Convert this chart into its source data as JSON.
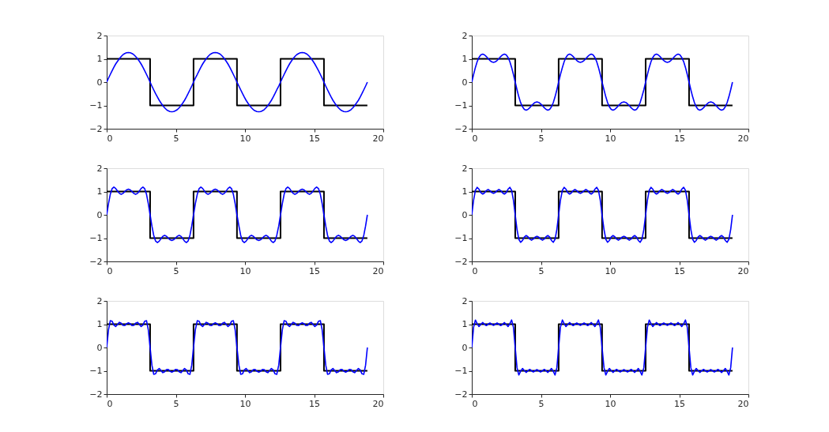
{
  "chart_data": [
    {
      "type": "line",
      "xlim": [
        0,
        20
      ],
      "xticks": [
        0,
        5,
        10,
        15,
        20
      ],
      "ylim": [
        -2,
        2
      ],
      "yticks": [
        -2,
        -1,
        0,
        1,
        2
      ],
      "x": [
        0,
        0.13,
        0.26,
        0.39,
        0.52,
        0.65,
        0.79,
        0.92,
        1.05,
        1.18,
        1.31,
        1.44,
        1.57,
        1.7,
        1.83,
        1.96,
        2.09,
        2.23,
        2.36,
        2.49,
        2.62,
        2.75,
        2.88,
        3.01,
        3.14,
        3.27,
        3.4,
        3.53,
        3.67,
        3.8,
        3.93,
        4.06,
        4.19,
        4.32,
        4.45,
        4.58,
        4.71,
        4.84,
        4.97,
        5.11,
        5.24,
        5.37,
        5.5,
        5.63,
        5.76,
        5.89,
        6.02,
        6.15,
        6.28,
        6.41,
        6.55,
        6.68,
        6.81,
        6.94,
        7.07,
        7.2,
        7.33,
        7.46,
        7.59,
        7.72,
        7.85,
        7.98,
        8.12,
        8.25,
        8.38,
        8.51,
        8.64,
        8.77,
        8.9,
        9.03,
        9.16,
        9.29,
        9.42,
        9.56,
        9.69,
        9.82,
        9.95,
        10.08,
        10.21,
        10.34,
        10.47,
        10.6,
        10.73,
        10.86,
        11.0,
        11.13,
        11.26,
        11.39,
        11.52,
        11.65,
        11.78,
        11.91,
        12.04,
        12.17,
        12.3,
        12.44,
        12.57,
        12.7,
        12.83,
        12.96,
        13.09,
        13.22,
        13.35,
        13.48,
        13.61,
        13.74,
        13.88,
        14.01,
        14.14,
        14.27,
        14.4,
        14.53,
        14.66,
        14.79,
        14.92,
        15.05,
        15.18,
        15.32,
        15.45,
        15.58,
        15.71,
        15.84,
        15.97,
        16.1,
        16.23,
        16.36,
        16.49,
        16.62,
        16.76,
        16.89,
        17.02,
        17.15,
        17.28,
        17.41,
        17.54,
        17.67,
        17.8,
        17.93,
        18.06,
        18.2,
        18.33,
        18.46,
        18.59,
        18.72,
        18.85
      ],
      "series": [
        {
          "type": "step",
          "color": "#000000",
          "x": [
            0,
            3.14,
            6.28,
            9.42,
            12.57,
            15.71,
            18.85
          ],
          "values": [
            1,
            -1,
            1,
            -1,
            1,
            -1,
            -1
          ]
        },
        {
          "color": "#0000ff",
          "values": [
            0,
            0.17,
            0.33,
            0.49,
            0.64,
            0.78,
            0.9,
            1.01,
            1.1,
            1.18,
            1.23,
            1.26,
            1.27,
            1.26,
            1.23,
            1.18,
            1.1,
            1.01,
            0.9,
            0.78,
            0.64,
            0.49,
            0.33,
            0.17,
            0,
            -0.17,
            -0.33,
            -0.49,
            -0.64,
            -0.78,
            -0.9,
            -1.01,
            -1.1,
            -1.18,
            -1.23,
            -1.26,
            -1.27,
            -1.26,
            -1.23,
            -1.18,
            -1.1,
            -1.01,
            -0.9,
            -0.78,
            -0.64,
            -0.49,
            -0.33,
            -0.17,
            0,
            0.17,
            0.33,
            0.49,
            0.64,
            0.78,
            0.9,
            1.01,
            1.1,
            1.18,
            1.23,
            1.26,
            1.27,
            1.26,
            1.23,
            1.18,
            1.1,
            1.01,
            0.9,
            0.78,
            0.64,
            0.49,
            0.33,
            0.17,
            0,
            -0.17,
            -0.33,
            -0.49,
            -0.64,
            -0.78,
            -0.9,
            -1.01,
            -1.1,
            -1.18,
            -1.23,
            -1.26,
            -1.27,
            -1.26,
            -1.23,
            -1.18,
            -1.1,
            -1.01,
            -0.9,
            -0.78,
            -0.64,
            -0.49,
            -0.33,
            -0.17,
            0,
            0.17,
            0.33,
            0.49,
            0.64,
            0.78,
            0.9,
            1.01,
            1.1,
            1.18,
            1.23,
            1.26,
            1.27,
            1.26,
            1.23,
            1.18,
            1.1,
            1.01,
            0.9,
            0.78,
            0.64,
            0.49,
            0.33,
            0.17,
            0,
            -0.17,
            -0.33,
            -0.49,
            -0.64,
            -0.78,
            -0.9,
            -1.01,
            -1.1,
            -1.18,
            -1.23,
            -1.26,
            -1.27,
            -1.26,
            -1.23,
            -1.18,
            -1.1,
            -1.01,
            -0.9,
            -0.78,
            -0.64,
            -0.49,
            -0.33,
            -0.17,
            0
          ]
        }
      ]
    },
    {
      "type": "line",
      "xlim": [
        0,
        20
      ],
      "xticks": [
        0,
        5,
        10,
        15,
        20
      ],
      "ylim": [
        -2,
        2
      ],
      "yticks": [
        -2,
        -1,
        0,
        1,
        2
      ],
      "x": [
        0,
        0.13,
        0.26,
        0.39,
        0.52,
        0.65,
        0.79,
        0.92,
        1.05,
        1.18,
        1.31,
        1.44,
        1.57,
        1.7,
        1.83,
        1.96,
        2.09,
        2.23,
        2.36,
        2.49,
        2.62,
        2.75,
        2.88,
        3.01,
        3.14,
        3.27,
        3.4,
        3.53,
        3.67,
        3.8,
        3.93,
        4.06,
        4.19,
        4.32,
        4.45,
        4.58,
        4.71,
        4.84,
        4.97,
        5.11,
        5.24,
        5.37,
        5.5,
        5.63,
        5.76,
        5.89,
        6.02,
        6.15,
        6.28,
        6.41,
        6.55,
        6.68,
        6.81,
        6.94,
        7.07,
        7.2,
        7.33,
        7.46,
        7.59,
        7.72,
        7.85,
        7.98,
        8.12,
        8.25,
        8.38,
        8.51,
        8.64,
        8.77,
        8.9,
        9.03,
        9.16,
        9.29,
        9.42,
        9.56,
        9.69,
        9.82,
        9.95,
        10.08,
        10.21,
        10.34,
        10.47,
        10.6,
        10.73,
        10.86,
        11.0,
        11.13,
        11.26,
        11.39,
        11.52,
        11.65,
        11.78,
        11.91,
        12.04,
        12.17,
        12.3,
        12.44,
        12.57,
        12.7,
        12.83,
        12.96,
        13.09,
        13.22,
        13.35,
        13.48,
        13.61,
        13.74,
        13.88,
        14.01,
        14.14,
        14.27,
        14.4,
        14.53,
        14.66,
        14.79,
        14.92,
        15.05,
        15.18,
        15.32,
        15.45,
        15.58,
        15.71,
        15.84,
        15.97,
        16.1,
        16.23,
        16.36,
        16.49,
        16.62,
        16.76,
        16.89,
        17.02,
        17.15,
        17.28,
        17.41,
        17.54,
        17.67,
        17.8,
        17.93,
        18.06,
        18.2,
        18.33,
        18.46,
        18.59,
        18.72,
        18.85
      ],
      "series": [
        {
          "type": "step",
          "color": "#000000",
          "x": [
            0,
            3.14,
            6.28,
            9.42,
            12.57,
            15.71,
            18.85
          ],
          "values": [
            1,
            -1,
            1,
            -1,
            1,
            -1,
            -1
          ]
        },
        {
          "color": "#0000ff",
          "values": [
            0,
            0.33,
            0.63,
            0.88,
            1.06,
            1.17,
            1.2,
            1.17,
            1.1,
            1.01,
            0.93,
            0.87,
            0.85,
            0.87,
            0.93,
            1.01,
            1.1,
            1.17,
            1.2,
            1.17,
            1.06,
            0.88,
            0.63,
            0.33,
            0,
            -0.33,
            -0.63,
            -0.88,
            -1.06,
            -1.17,
            -1.2,
            -1.17,
            -1.1,
            -1.01,
            -0.93,
            -0.87,
            -0.85,
            -0.87,
            -0.93,
            -1.01,
            -1.1,
            -1.17,
            -1.2,
            -1.17,
            -1.06,
            -0.88,
            -0.63,
            -0.33,
            0,
            0.33,
            0.63,
            0.88,
            1.06,
            1.17,
            1.2,
            1.17,
            1.1,
            1.01,
            0.93,
            0.87,
            0.85,
            0.87,
            0.93,
            1.01,
            1.1,
            1.17,
            1.2,
            1.17,
            1.06,
            0.88,
            0.63,
            0.33,
            0,
            -0.33,
            -0.63,
            -0.88,
            -1.06,
            -1.17,
            -1.2,
            -1.17,
            -1.1,
            -1.01,
            -0.93,
            -0.87,
            -0.85,
            -0.87,
            -0.93,
            -1.01,
            -1.1,
            -1.17,
            -1.2,
            -1.17,
            -1.06,
            -0.88,
            -0.63,
            -0.33,
            0,
            0.33,
            0.63,
            0.88,
            1.06,
            1.17,
            1.2,
            1.17,
            1.1,
            1.01,
            0.93,
            0.87,
            0.85,
            0.87,
            0.93,
            1.01,
            1.1,
            1.17,
            1.2,
            1.17,
            1.06,
            0.88,
            0.63,
            0.33,
            0,
            -0.33,
            -0.63,
            -0.88,
            -1.06,
            -1.17,
            -1.2,
            -1.17,
            -1.1,
            -1.01,
            -0.93,
            -0.87,
            -0.85,
            -0.87,
            -0.93,
            -1.01,
            -1.1,
            -1.17,
            -1.2,
            -1.17,
            -1.06,
            -0.88,
            -0.63,
            -0.33,
            0
          ]
        }
      ]
    },
    {
      "type": "line",
      "xlim": [
        0,
        20
      ],
      "xticks": [
        0,
        5,
        10,
        15,
        20
      ],
      "ylim": [
        -2,
        2
      ],
      "yticks": [
        -2,
        -1,
        0,
        1,
        2
      ],
      "x": [
        0,
        0.13,
        0.26,
        0.39,
        0.52,
        0.65,
        0.79,
        0.92,
        1.05,
        1.18,
        1.31,
        1.44,
        1.57,
        1.7,
        1.83,
        1.96,
        2.09,
        2.23,
        2.36,
        2.49,
        2.62,
        2.75,
        2.88,
        3.01,
        3.14,
        3.27,
        3.4,
        3.53,
        3.67,
        3.8,
        3.93,
        4.06,
        4.19,
        4.32,
        4.45,
        4.58,
        4.71,
        4.84,
        4.97,
        5.11,
        5.24,
        5.37,
        5.5,
        5.63,
        5.76,
        5.89,
        6.02,
        6.15,
        6.28,
        6.41,
        6.55,
        6.68,
        6.81,
        6.94,
        7.07,
        7.2,
        7.33,
        7.46,
        7.59,
        7.72,
        7.85,
        7.98,
        8.12,
        8.25,
        8.38,
        8.51,
        8.64,
        8.77,
        8.9,
        9.03,
        9.16,
        9.29,
        9.42,
        9.56,
        9.69,
        9.82,
        9.95,
        10.08,
        10.21,
        10.34,
        10.47,
        10.6,
        10.73,
        10.86,
        11.0,
        11.13,
        11.26,
        11.39,
        11.52,
        11.65,
        11.78,
        11.91,
        12.04,
        12.17,
        12.3,
        12.44,
        12.57,
        12.7,
        12.83,
        12.96,
        13.09,
        13.22,
        13.35,
        13.48,
        13.61,
        13.74,
        13.88,
        14.01,
        14.14,
        14.27,
        14.4,
        14.53,
        14.66,
        14.79,
        14.92,
        15.05,
        15.18,
        15.32,
        15.45,
        15.58,
        15.71,
        15.84,
        15.97,
        16.1,
        16.23,
        16.36,
        16.49,
        16.62,
        16.76,
        16.89,
        17.02,
        17.15,
        17.28,
        17.41,
        17.54,
        17.67,
        17.8,
        17.93,
        18.06,
        18.2,
        18.33,
        18.46,
        18.59,
        18.72,
        18.85
      ],
      "series": [
        {
          "type": "step",
          "color": "#000000",
          "x": [
            0,
            3.14,
            6.28,
            9.42,
            12.57,
            15.71,
            18.85
          ],
          "values": [
            1,
            -1,
            1,
            -1,
            1,
            -1,
            -1
          ]
        },
        {
          "color": "#0000ff",
          "values": [
            0,
            0.48,
            0.88,
            1.12,
            1.19,
            1.13,
            1.02,
            0.92,
            0.88,
            0.92,
            1,
            1.07,
            1.1,
            1.07,
            1,
            0.92,
            0.88,
            0.92,
            1.02,
            1.13,
            1.19,
            1.12,
            0.88,
            0.48,
            0,
            -0.48,
            -0.88,
            -1.12,
            -1.19,
            -1.13,
            -1.02,
            -0.92,
            -0.88,
            -0.92,
            -1,
            -1.07,
            -1.1,
            -1.07,
            -1,
            -0.92,
            -0.88,
            -0.92,
            -1.02,
            -1.13,
            -1.19,
            -1.12,
            -0.88,
            -0.48,
            0,
            0.48,
            0.88,
            1.12,
            1.19,
            1.13,
            1.02,
            0.92,
            0.88,
            0.92,
            1,
            1.07,
            1.1,
            1.07,
            1,
            0.92,
            0.88,
            0.92,
            1.02,
            1.13,
            1.19,
            1.12,
            0.88,
            0.48,
            0,
            -0.48,
            -0.88,
            -1.12,
            -1.19,
            -1.13,
            -1.02,
            -0.92,
            -0.88,
            -0.92,
            -1,
            -1.07,
            -1.1,
            -1.07,
            -1,
            -0.92,
            -0.88,
            -0.92,
            -1.02,
            -1.13,
            -1.19,
            -1.12,
            -0.88,
            -0.48,
            0,
            0.48,
            0.88,
            1.12,
            1.19,
            1.13,
            1.02,
            0.92,
            0.88,
            0.92,
            1,
            1.07,
            1.1,
            1.07,
            1,
            0.92,
            0.88,
            0.92,
            1.02,
            1.13,
            1.19,
            1.12,
            0.88,
            0.48,
            0,
            -0.48,
            -0.88,
            -1.12,
            -1.19,
            -1.13,
            -1.02,
            -0.92,
            -0.88,
            -0.92,
            -1,
            -1.07,
            -1.1,
            -1.07,
            -1,
            -0.92,
            -0.88,
            -0.92,
            -1.02,
            -1.13,
            -1.19,
            -1.12,
            -0.88,
            -0.48,
            0
          ]
        }
      ]
    },
    {
      "type": "line",
      "xlim": [
        0,
        20
      ],
      "xticks": [
        0,
        5,
        10,
        15,
        20
      ],
      "ylim": [
        -2,
        2
      ],
      "yticks": [
        -2,
        -1,
        0,
        1,
        2
      ],
      "x": [
        0,
        0.13,
        0.26,
        0.39,
        0.52,
        0.65,
        0.79,
        0.92,
        1.05,
        1.18,
        1.31,
        1.44,
        1.57,
        1.7,
        1.83,
        1.96,
        2.09,
        2.23,
        2.36,
        2.49,
        2.62,
        2.75,
        2.88,
        3.01,
        3.14,
        3.27,
        3.4,
        3.53,
        3.67,
        3.8,
        3.93,
        4.06,
        4.19,
        4.32,
        4.45,
        4.58,
        4.71,
        4.84,
        4.97,
        5.11,
        5.24,
        5.37,
        5.5,
        5.63,
        5.76,
        5.89,
        6.02,
        6.15,
        6.28,
        6.41,
        6.55,
        6.68,
        6.81,
        6.94,
        7.07,
        7.2,
        7.33,
        7.46,
        7.59,
        7.72,
        7.85,
        7.98,
        8.12,
        8.25,
        8.38,
        8.51,
        8.64,
        8.77,
        8.9,
        9.03,
        9.16,
        9.29,
        9.42,
        9.56,
        9.69,
        9.82,
        9.95,
        10.08,
        10.21,
        10.34,
        10.47,
        10.6,
        10.73,
        10.86,
        11.0,
        11.13,
        11.26,
        11.39,
        11.52,
        11.65,
        11.78,
        11.91,
        12.04,
        12.17,
        12.3,
        12.44,
        12.57,
        12.7,
        12.83,
        12.96,
        13.09,
        13.22,
        13.35,
        13.48,
        13.61,
        13.74,
        13.88,
        14.01,
        14.14,
        14.27,
        14.4,
        14.53,
        14.66,
        14.79,
        14.92,
        15.05,
        15.18,
        15.32,
        15.45,
        15.58,
        15.71,
        15.84,
        15.97,
        16.1,
        16.23,
        16.36,
        16.49,
        16.62,
        16.76,
        16.89,
        17.02,
        17.15,
        17.28,
        17.41,
        17.54,
        17.67,
        17.8,
        17.93,
        18.06,
        18.2,
        18.33,
        18.46,
        18.59,
        18.72,
        18.85
      ],
      "series": [
        {
          "type": "step",
          "color": "#000000",
          "x": [
            0,
            3.14,
            6.28,
            9.42,
            12.57,
            15.71,
            18.85
          ],
          "values": [
            1,
            -1,
            1,
            -1,
            1,
            -1,
            -1
          ]
        },
        {
          "color": "#0000ff",
          "values": [
            0,
            0.63,
            1.05,
            1.18,
            1.1,
            0.95,
            0.89,
            0.94,
            1.04,
            1.09,
            1.04,
            0.96,
            0.92,
            0.96,
            1.04,
            1.09,
            1.04,
            0.94,
            0.89,
            0.95,
            1.1,
            1.18,
            1.05,
            0.63,
            0,
            -0.63,
            -1.05,
            -1.18,
            -1.1,
            -0.95,
            -0.89,
            -0.94,
            -1.04,
            -1.09,
            -1.04,
            -0.96,
            -0.92,
            -0.96,
            -1.04,
            -1.09,
            -1.04,
            -0.94,
            -0.89,
            -0.95,
            -1.1,
            -1.18,
            -1.05,
            -0.63,
            0,
            0.63,
            1.05,
            1.18,
            1.1,
            0.95,
            0.89,
            0.94,
            1.04,
            1.09,
            1.04,
            0.96,
            0.92,
            0.96,
            1.04,
            1.09,
            1.04,
            0.94,
            0.89,
            0.95,
            1.1,
            1.18,
            1.05,
            0.63,
            0,
            -0.63,
            -1.05,
            -1.18,
            -1.1,
            -0.95,
            -0.89,
            -0.94,
            -1.04,
            -1.09,
            -1.04,
            -0.96,
            -0.92,
            -0.96,
            -1.04,
            -1.09,
            -1.04,
            -0.94,
            -0.89,
            -0.95,
            -1.1,
            -1.18,
            -1.05,
            -0.63,
            0,
            0.63,
            1.05,
            1.18,
            1.1,
            0.95,
            0.89,
            0.94,
            1.04,
            1.09,
            1.04,
            0.96,
            0.92,
            0.96,
            1.04,
            1.09,
            1.04,
            0.94,
            0.89,
            0.95,
            1.1,
            1.18,
            1.05,
            0.63,
            0,
            -0.63,
            -1.05,
            -1.18,
            -1.1,
            -0.95,
            -0.89,
            -0.94,
            -1.04,
            -1.09,
            -1.04,
            -0.96,
            -0.92,
            -0.96,
            -1.04,
            -1.09,
            -1.04,
            -0.94,
            -0.89,
            -0.95,
            -1.1,
            -1.18,
            -1.05,
            -0.63,
            0
          ]
        }
      ]
    },
    {
      "type": "line",
      "xlim": [
        0,
        20
      ],
      "xticks": [
        0,
        5,
        10,
        15,
        20
      ],
      "ylim": [
        -2,
        2
      ],
      "yticks": [
        -2,
        -1,
        0,
        1,
        2
      ],
      "x": [
        0,
        0.13,
        0.26,
        0.39,
        0.52,
        0.65,
        0.79,
        0.92,
        1.05,
        1.18,
        1.31,
        1.44,
        1.57,
        1.7,
        1.83,
        1.96,
        2.09,
        2.23,
        2.36,
        2.49,
        2.62,
        2.75,
        2.88,
        3.01,
        3.14,
        3.27,
        3.4,
        3.53,
        3.67,
        3.8,
        3.93,
        4.06,
        4.19,
        4.32,
        4.45,
        4.58,
        4.71,
        4.84,
        4.97,
        5.11,
        5.24,
        5.37,
        5.5,
        5.63,
        5.76,
        5.89,
        6.02,
        6.15,
        6.28,
        6.41,
        6.55,
        6.68,
        6.81,
        6.94,
        7.07,
        7.2,
        7.33,
        7.46,
        7.59,
        7.72,
        7.85,
        7.98,
        8.12,
        8.25,
        8.38,
        8.51,
        8.64,
        8.77,
        8.9,
        9.03,
        9.16,
        9.29,
        9.42,
        9.56,
        9.69,
        9.82,
        9.95,
        10.08,
        10.21,
        10.34,
        10.47,
        10.6,
        10.73,
        10.86,
        11.0,
        11.13,
        11.26,
        11.39,
        11.52,
        11.65,
        11.78,
        11.91,
        12.04,
        12.17,
        12.3,
        12.44,
        12.57,
        12.7,
        12.83,
        12.96,
        13.09,
        13.22,
        13.35,
        13.48,
        13.61,
        13.74,
        13.88,
        14.01,
        14.14,
        14.27,
        14.4,
        14.53,
        14.66,
        14.79,
        14.92,
        15.05,
        15.18,
        15.32,
        15.45,
        15.58,
        15.71,
        15.84,
        15.97,
        16.1,
        16.23,
        16.36,
        16.49,
        16.62,
        16.76,
        16.89,
        17.02,
        17.15,
        17.28,
        17.41,
        17.54,
        17.67,
        17.8,
        17.93,
        18.06,
        18.2,
        18.33,
        18.46,
        18.59,
        18.72,
        18.85
      ],
      "series": [
        {
          "type": "step",
          "color": "#000000",
          "x": [
            0,
            3.14,
            6.28,
            9.42,
            12.57,
            15.71,
            18.85
          ],
          "values": [
            1,
            -1,
            1,
            -1,
            1,
            -1,
            -1
          ]
        },
        {
          "color": "#0000ff",
          "values": [
            0,
            0.76,
            1.15,
            1.13,
            0.96,
            0.9,
            0.99,
            1.08,
            1.04,
            0.95,
            0.94,
            1.02,
            1.06,
            1.02,
            0.94,
            0.95,
            1.04,
            1.08,
            0.99,
            0.9,
            0.96,
            1.13,
            1.15,
            0.76,
            0,
            -0.76,
            -1.15,
            -1.13,
            -0.96,
            -0.9,
            -0.99,
            -1.08,
            -1.04,
            -0.95,
            -0.94,
            -1.02,
            -1.06,
            -1.02,
            -0.94,
            -0.95,
            -1.04,
            -1.08,
            -0.99,
            -0.9,
            -0.96,
            -1.13,
            -1.15,
            -0.76,
            0,
            0.76,
            1.15,
            1.13,
            0.96,
            0.9,
            0.99,
            1.08,
            1.04,
            0.95,
            0.94,
            1.02,
            1.06,
            1.02,
            0.94,
            0.95,
            1.04,
            1.08,
            0.99,
            0.9,
            0.96,
            1.13,
            1.15,
            0.76,
            0,
            -0.76,
            -1.15,
            -1.13,
            -0.96,
            -0.9,
            -0.99,
            -1.08,
            -1.04,
            -0.95,
            -0.94,
            -1.02,
            -1.06,
            -1.02,
            -0.94,
            -0.95,
            -1.04,
            -1.08,
            -0.99,
            -0.9,
            -0.96,
            -1.13,
            -1.15,
            -0.76,
            0,
            0.76,
            1.15,
            1.13,
            0.96,
            0.9,
            0.99,
            1.08,
            1.04,
            0.95,
            0.94,
            1.02,
            1.06,
            1.02,
            0.94,
            0.95,
            1.04,
            1.08,
            0.99,
            0.9,
            0.96,
            1.13,
            1.15,
            0.76,
            0,
            -0.76,
            -1.15,
            -1.13,
            -0.96,
            -0.9,
            -0.99,
            -1.08,
            -1.04,
            -0.95,
            -0.94,
            -1.02,
            -1.06,
            -1.02,
            -0.94,
            -0.95,
            -1.04,
            -1.08,
            -0.99,
            -0.9,
            -0.96,
            -1.13,
            -1.15,
            -0.76,
            0
          ]
        }
      ]
    },
    {
      "type": "line",
      "xlim": [
        0,
        20
      ],
      "xticks": [
        0,
        5,
        10,
        15,
        20
      ],
      "ylim": [
        -2,
        2
      ],
      "yticks": [
        -2,
        -1,
        0,
        1,
        2
      ],
      "x": [
        0,
        0.13,
        0.26,
        0.39,
        0.52,
        0.65,
        0.79,
        0.92,
        1.05,
        1.18,
        1.31,
        1.44,
        1.57,
        1.7,
        1.83,
        1.96,
        2.09,
        2.23,
        2.36,
        2.49,
        2.62,
        2.75,
        2.88,
        3.01,
        3.14,
        3.27,
        3.4,
        3.53,
        3.67,
        3.8,
        3.93,
        4.06,
        4.19,
        4.32,
        4.45,
        4.58,
        4.71,
        4.84,
        4.97,
        5.11,
        5.24,
        5.37,
        5.5,
        5.63,
        5.76,
        5.89,
        6.02,
        6.15,
        6.28,
        6.41,
        6.55,
        6.68,
        6.81,
        6.94,
        7.07,
        7.2,
        7.33,
        7.46,
        7.59,
        7.72,
        7.85,
        7.98,
        8.12,
        8.25,
        8.38,
        8.51,
        8.64,
        8.77,
        8.9,
        9.03,
        9.16,
        9.29,
        9.42,
        9.56,
        9.69,
        9.82,
        9.95,
        10.08,
        10.21,
        10.34,
        10.47,
        10.6,
        10.73,
        10.86,
        11.0,
        11.13,
        11.26,
        11.39,
        11.52,
        11.65,
        11.78,
        11.91,
        12.04,
        12.17,
        12.3,
        12.44,
        12.57,
        12.7,
        12.83,
        12.96,
        13.09,
        13.22,
        13.35,
        13.48,
        13.61,
        13.74,
        13.88,
        14.01,
        14.14,
        14.27,
        14.4,
        14.53,
        14.66,
        14.79,
        14.92,
        15.05,
        15.18,
        15.32,
        15.45,
        15.58,
        15.71,
        15.84,
        15.97,
        16.1,
        16.23,
        16.36,
        16.49,
        16.62,
        16.76,
        16.89,
        17.02,
        17.15,
        17.28,
        17.41,
        17.54,
        17.67,
        17.8,
        17.93,
        18.06,
        18.2,
        18.33,
        18.46,
        18.59,
        18.72,
        18.85
      ],
      "series": [
        {
          "type": "step",
          "color": "#000000",
          "x": [
            0,
            3.14,
            6.28,
            9.42,
            12.57,
            15.71,
            18.85
          ],
          "values": [
            1,
            -1,
            1,
            -1,
            1,
            -1,
            -1
          ]
        },
        {
          "color": "#0000ff",
          "values": [
            0,
            0.87,
            1.18,
            1.02,
            0.9,
            0.99,
            1.07,
            1,
            0.94,
            1,
            1.05,
            1,
            0.95,
            1,
            1.05,
            1,
            0.94,
            1,
            1.07,
            0.99,
            0.9,
            1.02,
            1.18,
            0.87,
            0,
            -0.87,
            -1.18,
            -1.02,
            -0.9,
            -0.99,
            -1.07,
            -1,
            -0.94,
            -1,
            -1.05,
            -1,
            -0.95,
            -1,
            -1.05,
            -1,
            -0.94,
            -1,
            -1.07,
            -0.99,
            -0.9,
            -1.02,
            -1.18,
            -0.87,
            0,
            0.87,
            1.18,
            1.02,
            0.9,
            0.99,
            1.07,
            1,
            0.94,
            1,
            1.05,
            1,
            0.95,
            1,
            1.05,
            1,
            0.94,
            1,
            1.07,
            0.99,
            0.9,
            1.02,
            1.18,
            0.87,
            0,
            -0.87,
            -1.18,
            -1.02,
            -0.9,
            -0.99,
            -1.07,
            -1,
            -0.94,
            -1,
            -1.05,
            -1,
            -0.95,
            -1,
            -1.05,
            -1,
            -0.94,
            -1,
            -1.07,
            -0.99,
            -0.9,
            -1.02,
            -1.18,
            -0.87,
            0,
            0.87,
            1.18,
            1.02,
            0.9,
            0.99,
            1.07,
            1,
            0.94,
            1,
            1.05,
            1,
            0.95,
            1,
            1.05,
            1,
            0.94,
            1,
            1.07,
            0.99,
            0.9,
            1.02,
            1.18,
            0.87,
            0,
            -0.87,
            -1.18,
            -1.02,
            -0.9,
            -0.99,
            -1.07,
            -1,
            -0.94,
            -1,
            -1.05,
            -1,
            -0.95,
            -1,
            -1.05,
            -1,
            -0.94,
            -1,
            -1.07,
            -0.99,
            -0.9,
            -1.02,
            -1.18,
            -0.87,
            0
          ]
        }
      ]
    }
  ]
}
